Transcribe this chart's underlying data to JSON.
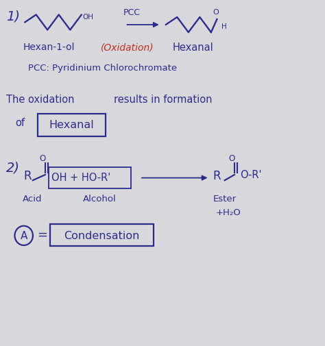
{
  "background_color": "#d8d8dc",
  "fig_width": 4.74,
  "fig_height": 5.06,
  "dpi": 100,
  "ink_color": "#2b2b8f",
  "red_color": "#c03020",
  "xlim": [
    0,
    10
  ],
  "ylim": [
    0,
    10
  ]
}
